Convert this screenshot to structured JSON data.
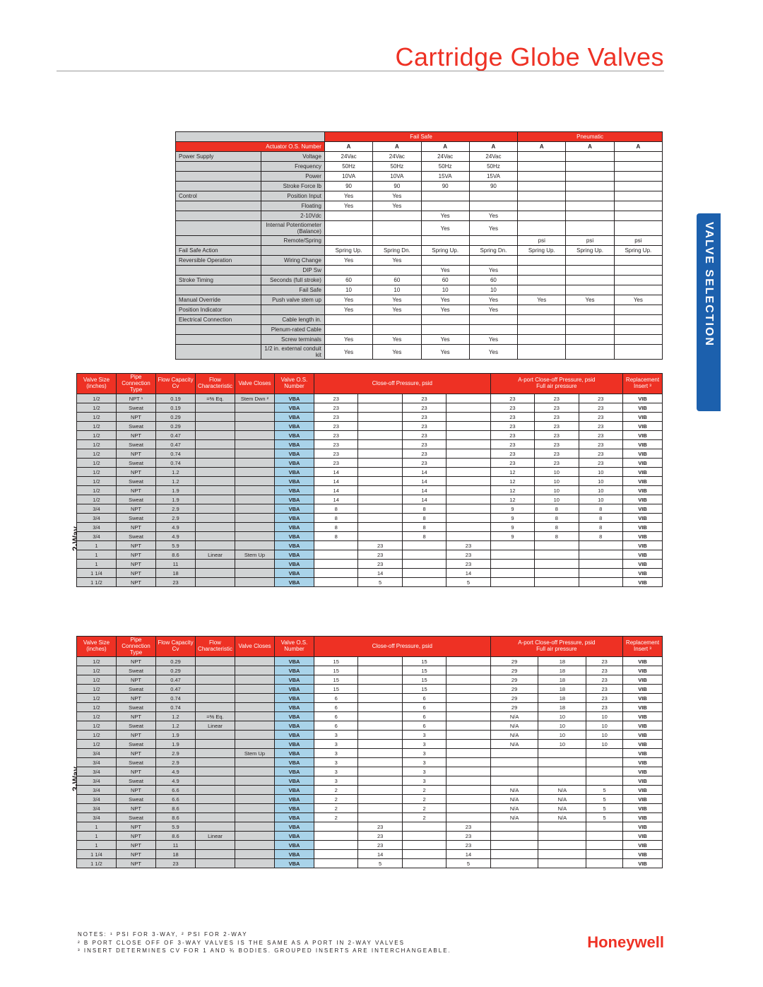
{
  "title": "Cartridge Globe Valves",
  "side_tab": "VALVE SELECTION",
  "logo": "Honeywell",
  "labels": {
    "two_way": "2-Way",
    "three_way": "3-Way"
  },
  "top": {
    "group_hdr": {
      "failsafe": "Fail Safe",
      "pneumatic": "Pneumatic"
    },
    "actuator_hdr": "Actuator O.S. Number",
    "cols": [
      "A",
      "A",
      "A",
      "A",
      "A",
      "A",
      "A"
    ],
    "rows": [
      {
        "l1": "Power Supply",
        "l2": "Voltage",
        "v": [
          "24Vac",
          "24Vac",
          "24Vac",
          "24Vac",
          "",
          "",
          ""
        ]
      },
      {
        "l1": "",
        "l2": "Frequency",
        "v": [
          "50Hz",
          "50Hz",
          "50Hz",
          "50Hz",
          "",
          "",
          ""
        ]
      },
      {
        "l1": "",
        "l2": "Power",
        "v": [
          "10VA",
          "10VA",
          "15VA",
          "15VA",
          "",
          "",
          ""
        ]
      },
      {
        "l1": "",
        "l2": "Stroke Force lb",
        "v": [
          "90",
          "90",
          "90",
          "90",
          "",
          "",
          ""
        ]
      },
      {
        "l1": "Control",
        "l2": "Position Input",
        "v": [
          "Yes",
          "Yes",
          "",
          "",
          "",
          "",
          ""
        ]
      },
      {
        "l1": "",
        "l2": "Floating",
        "v": [
          "Yes",
          "Yes",
          "",
          "",
          "",
          "",
          ""
        ]
      },
      {
        "l1": "",
        "l2": "2-10Vdc",
        "v": [
          "",
          "",
          "Yes",
          "Yes",
          "",
          "",
          ""
        ]
      },
      {
        "l1": "",
        "l2": "Internal Potentiometer (Balance)",
        "v": [
          "",
          "",
          "Yes",
          "Yes",
          "",
          "",
          ""
        ]
      },
      {
        "l1": "",
        "l2": "Remote/Spring",
        "v": [
          "",
          "",
          "",
          "",
          "psi",
          "psi",
          "psi"
        ]
      },
      {
        "l1": "Fail Safe Action",
        "l2": "",
        "v": [
          "Spring Up.",
          "Spring Dn.",
          "Spring Up.",
          "Spring Dn.",
          "Spring Up.",
          "Spring Up.",
          "Spring Up."
        ]
      },
      {
        "l1": "Reversible Operation",
        "l2": "Wiring Change",
        "v": [
          "Yes",
          "Yes",
          "",
          "",
          "",
          "",
          ""
        ]
      },
      {
        "l1": "",
        "l2": "DIP Sw",
        "v": [
          "",
          "",
          "Yes",
          "Yes",
          "",
          "",
          ""
        ]
      },
      {
        "l1": "Stroke Timing",
        "l2": "Seconds (full stroke)",
        "v": [
          "60",
          "60",
          "60",
          "60",
          "",
          "",
          ""
        ]
      },
      {
        "l1": "",
        "l2": "Fail Safe",
        "v": [
          "10",
          "10",
          "10",
          "10",
          "",
          "",
          ""
        ]
      },
      {
        "l1": "Manual Override",
        "l2": "Push valve stem up",
        "v": [
          "Yes",
          "Yes",
          "Yes",
          "Yes",
          "Yes",
          "Yes",
          "Yes"
        ]
      },
      {
        "l1": "Position Indicator",
        "l2": "",
        "v": [
          "Yes",
          "Yes",
          "Yes",
          "Yes",
          "",
          "",
          ""
        ]
      },
      {
        "l1": "Electrical Connection",
        "l2": "Cable length in.",
        "v": [
          "",
          "",
          "",
          "",
          "",
          "",
          ""
        ]
      },
      {
        "l1": "",
        "l2": "Plenum-rated Cable",
        "v": [
          "",
          "",
          "",
          "",
          "",
          "",
          ""
        ]
      },
      {
        "l1": "",
        "l2": "Screw terminals",
        "v": [
          "Yes",
          "Yes",
          "Yes",
          "Yes",
          "",
          "",
          ""
        ]
      },
      {
        "l1": "",
        "l2": "1/2 in. external conduit kit",
        "v": [
          "Yes",
          "Yes",
          "Yes",
          "Yes",
          "",
          "",
          ""
        ]
      }
    ]
  },
  "valve_hdr": {
    "c0": "Valve Size (inches)",
    "c1": "Pipe Connection Type",
    "c2": "Flow Capacity Cv",
    "c3": "Flow Characteristic",
    "c4": "Valve Closes",
    "c5": "Valve O.S. Number",
    "close": "Close-off Pressure, psid",
    "aport": "A-port Close-off Pressure, psid\nFull air pressure",
    "rep": "Replacement Insert ³"
  },
  "two_way": [
    {
      "sz": "1/2",
      "pc": "NPT ¹",
      "cv": "0.19",
      "fc": "=% Eq.",
      "vc": "Stem Dwn ²",
      "os": "VBA",
      "p": [
        "23",
        "",
        "23",
        "",
        "23",
        "23",
        "23"
      ],
      "rp": "VIB"
    },
    {
      "sz": "1/2",
      "pc": "Sweat",
      "cv": "0.19",
      "fc": "",
      "vc": "",
      "os": "VBA",
      "p": [
        "23",
        "",
        "23",
        "",
        "23",
        "23",
        "23"
      ],
      "rp": "VIB"
    },
    {
      "sz": "1/2",
      "pc": "NPT",
      "cv": "0.29",
      "fc": "",
      "vc": "",
      "os": "VBA",
      "p": [
        "23",
        "",
        "23",
        "",
        "23",
        "23",
        "23"
      ],
      "rp": "VIB"
    },
    {
      "sz": "1/2",
      "pc": "Sweat",
      "cv": "0.29",
      "fc": "",
      "vc": "",
      "os": "VBA",
      "p": [
        "23",
        "",
        "23",
        "",
        "23",
        "23",
        "23"
      ],
      "rp": "VIB"
    },
    {
      "sz": "1/2",
      "pc": "NPT",
      "cv": "0.47",
      "fc": "",
      "vc": "",
      "os": "VBA",
      "p": [
        "23",
        "",
        "23",
        "",
        "23",
        "23",
        "23"
      ],
      "rp": "VIB"
    },
    {
      "sz": "1/2",
      "pc": "Sweat",
      "cv": "0.47",
      "fc": "",
      "vc": "",
      "os": "VBA",
      "p": [
        "23",
        "",
        "23",
        "",
        "23",
        "23",
        "23"
      ],
      "rp": "VIB"
    },
    {
      "sz": "1/2",
      "pc": "NPT",
      "cv": "0.74",
      "fc": "",
      "vc": "",
      "os": "VBA",
      "p": [
        "23",
        "",
        "23",
        "",
        "23",
        "23",
        "23"
      ],
      "rp": "VIB"
    },
    {
      "sz": "1/2",
      "pc": "Sweat",
      "cv": "0.74",
      "fc": "",
      "vc": "",
      "os": "VBA",
      "p": [
        "23",
        "",
        "23",
        "",
        "23",
        "23",
        "23"
      ],
      "rp": "VIB"
    },
    {
      "sz": "1/2",
      "pc": "NPT",
      "cv": "1.2",
      "fc": "",
      "vc": "",
      "os": "VBA",
      "p": [
        "14",
        "",
        "14",
        "",
        "12",
        "10",
        "10"
      ],
      "rp": "VIB"
    },
    {
      "sz": "1/2",
      "pc": "Sweat",
      "cv": "1.2",
      "fc": "",
      "vc": "",
      "os": "VBA",
      "p": [
        "14",
        "",
        "14",
        "",
        "12",
        "10",
        "10"
      ],
      "rp": "VIB"
    },
    {
      "sz": "1/2",
      "pc": "NPT",
      "cv": "1.9",
      "fc": "",
      "vc": "",
      "os": "VBA",
      "p": [
        "14",
        "",
        "14",
        "",
        "12",
        "10",
        "10"
      ],
      "rp": "VIB"
    },
    {
      "sz": "1/2",
      "pc": "Sweat",
      "cv": "1.9",
      "fc": "",
      "vc": "",
      "os": "VBA",
      "p": [
        "14",
        "",
        "14",
        "",
        "12",
        "10",
        "10"
      ],
      "rp": "VIB"
    },
    {
      "sz": "3/4",
      "pc": "NPT",
      "cv": "2.9",
      "fc": "",
      "vc": "",
      "os": "VBA",
      "p": [
        "8",
        "",
        "8",
        "",
        "9",
        "8",
        "8"
      ],
      "rp": "VIB"
    },
    {
      "sz": "3/4",
      "pc": "Sweat",
      "cv": "2.9",
      "fc": "",
      "vc": "",
      "os": "VBA",
      "p": [
        "8",
        "",
        "8",
        "",
        "9",
        "8",
        "8"
      ],
      "rp": "VIB"
    },
    {
      "sz": "3/4",
      "pc": "NPT",
      "cv": "4.9",
      "fc": "",
      "vc": "",
      "os": "VBA",
      "p": [
        "8",
        "",
        "8",
        "",
        "9",
        "8",
        "8"
      ],
      "rp": "VIB"
    },
    {
      "sz": "3/4",
      "pc": "Sweat",
      "cv": "4.9",
      "fc": "",
      "vc": "",
      "os": "VBA",
      "p": [
        "8",
        "",
        "8",
        "",
        "9",
        "8",
        "8"
      ],
      "rp": "VIB"
    },
    {
      "sz": "1",
      "pc": "NPT",
      "cv": "5.9",
      "fc": "",
      "vc": "",
      "os": "VBA",
      "p": [
        "",
        "23",
        "",
        "23",
        "",
        "",
        ""
      ],
      "rp": "VIB"
    },
    {
      "sz": "1",
      "pc": "NPT",
      "cv": "8.6",
      "fc": "Linear",
      "vc": "Stem Up",
      "os": "VBA",
      "p": [
        "",
        "23",
        "",
        "23",
        "",
        "",
        ""
      ],
      "rp": "VIB"
    },
    {
      "sz": "1",
      "pc": "NPT",
      "cv": "11",
      "fc": "",
      "vc": "",
      "os": "VBA",
      "p": [
        "",
        "23",
        "",
        "23",
        "",
        "",
        ""
      ],
      "rp": "VIB"
    },
    {
      "sz": "1 1/4",
      "pc": "NPT",
      "cv": "18",
      "fc": "",
      "vc": "",
      "os": "VBA",
      "p": [
        "",
        "14",
        "",
        "14",
        "",
        "",
        ""
      ],
      "rp": "VIB"
    },
    {
      "sz": "1 1/2",
      "pc": "NPT",
      "cv": "23",
      "fc": "",
      "vc": "",
      "os": "VBA",
      "p": [
        "",
        "5",
        "",
        "5",
        "",
        "",
        ""
      ],
      "rp": "VIB"
    }
  ],
  "three_way": [
    {
      "sz": "1/2",
      "pc": "NPT",
      "cv": "0.29",
      "fc": "",
      "vc": "",
      "os": "VBA",
      "p": [
        "15",
        "",
        "15",
        "",
        "29",
        "18",
        "23"
      ],
      "rp": "VIB"
    },
    {
      "sz": "1/2",
      "pc": "Sweat",
      "cv": "0.29",
      "fc": "",
      "vc": "",
      "os": "VBA",
      "p": [
        "15",
        "",
        "15",
        "",
        "29",
        "18",
        "23"
      ],
      "rp": "VIB"
    },
    {
      "sz": "1/2",
      "pc": "NPT",
      "cv": "0.47",
      "fc": "",
      "vc": "",
      "os": "VBA",
      "p": [
        "15",
        "",
        "15",
        "",
        "29",
        "18",
        "23"
      ],
      "rp": "VIB"
    },
    {
      "sz": "1/2",
      "pc": "Sweat",
      "cv": "0.47",
      "fc": "",
      "vc": "",
      "os": "VBA",
      "p": [
        "15",
        "",
        "15",
        "",
        "29",
        "18",
        "23"
      ],
      "rp": "VIB"
    },
    {
      "sz": "1/2",
      "pc": "NPT",
      "cv": "0.74",
      "fc": "",
      "vc": "",
      "os": "VBA",
      "p": [
        "6",
        "",
        "6",
        "",
        "29",
        "18",
        "23"
      ],
      "rp": "VIB"
    },
    {
      "sz": "1/2",
      "pc": "Sweat",
      "cv": "0.74",
      "fc": "",
      "vc": "",
      "os": "VBA",
      "p": [
        "6",
        "",
        "6",
        "",
        "29",
        "18",
        "23"
      ],
      "rp": "VIB"
    },
    {
      "sz": "1/2",
      "pc": "NPT",
      "cv": "1.2",
      "fc": "=% Eq.",
      "vc": "",
      "os": "VBA",
      "p": [
        "6",
        "",
        "6",
        "",
        "N/A",
        "10",
        "10"
      ],
      "rp": "VIB"
    },
    {
      "sz": "1/2",
      "pc": "Sweat",
      "cv": "1.2",
      "fc": "Linear",
      "vc": "",
      "os": "VBA",
      "p": [
        "6",
        "",
        "6",
        "",
        "N/A",
        "10",
        "10"
      ],
      "rp": "VIB"
    },
    {
      "sz": "1/2",
      "pc": "NPT",
      "cv": "1.9",
      "fc": "",
      "vc": "",
      "os": "VBA",
      "p": [
        "3",
        "",
        "3",
        "",
        "N/A",
        "10",
        "10"
      ],
      "rp": "VIB"
    },
    {
      "sz": "1/2",
      "pc": "Sweat",
      "cv": "1.9",
      "fc": "",
      "vc": "",
      "os": "VBA",
      "p": [
        "3",
        "",
        "3",
        "",
        "N/A",
        "10",
        "10"
      ],
      "rp": "VIB"
    },
    {
      "sz": "3/4",
      "pc": "NPT",
      "cv": "2.9",
      "fc": "",
      "vc": "Stem Up",
      "os": "VBA",
      "p": [
        "3",
        "",
        "3",
        "",
        "",
        "",
        ""
      ],
      "rp": "VIB"
    },
    {
      "sz": "3/4",
      "pc": "Sweat",
      "cv": "2.9",
      "fc": "",
      "vc": "",
      "os": "VBA",
      "p": [
        "3",
        "",
        "3",
        "",
        "",
        "",
        ""
      ],
      "rp": "VIB"
    },
    {
      "sz": "3/4",
      "pc": "NPT",
      "cv": "4.9",
      "fc": "",
      "vc": "",
      "os": "VBA",
      "p": [
        "3",
        "",
        "3",
        "",
        "",
        "",
        ""
      ],
      "rp": "VIB"
    },
    {
      "sz": "3/4",
      "pc": "Sweat",
      "cv": "4.9",
      "fc": "",
      "vc": "",
      "os": "VBA",
      "p": [
        "3",
        "",
        "3",
        "",
        "",
        "",
        ""
      ],
      "rp": "VIB"
    },
    {
      "sz": "3/4",
      "pc": "NPT",
      "cv": "6.6",
      "fc": "",
      "vc": "",
      "os": "VBA",
      "p": [
        "2",
        "",
        "2",
        "",
        "N/A",
        "N/A",
        "5"
      ],
      "rp": "VIB"
    },
    {
      "sz": "3/4",
      "pc": "Sweat",
      "cv": "6.6",
      "fc": "",
      "vc": "",
      "os": "VBA",
      "p": [
        "2",
        "",
        "2",
        "",
        "N/A",
        "N/A",
        "5"
      ],
      "rp": "VIB"
    },
    {
      "sz": "3/4",
      "pc": "NPT",
      "cv": "8.6",
      "fc": "",
      "vc": "",
      "os": "VBA",
      "p": [
        "2",
        "",
        "2",
        "",
        "N/A",
        "N/A",
        "5"
      ],
      "rp": "VIB"
    },
    {
      "sz": "3/4",
      "pc": "Sweat",
      "cv": "8.6",
      "fc": "",
      "vc": "",
      "os": "VBA",
      "p": [
        "2",
        "",
        "2",
        "",
        "N/A",
        "N/A",
        "5"
      ],
      "rp": "VIB"
    },
    {
      "sz": "1",
      "pc": "NPT",
      "cv": "5.9",
      "fc": "",
      "vc": "",
      "os": "VBA",
      "p": [
        "",
        "23",
        "",
        "23",
        "",
        "",
        ""
      ],
      "rp": "VIB"
    },
    {
      "sz": "1",
      "pc": "NPT",
      "cv": "8.6",
      "fc": "Linear",
      "vc": "",
      "os": "VBA",
      "p": [
        "",
        "23",
        "",
        "23",
        "",
        "",
        ""
      ],
      "rp": "VIB"
    },
    {
      "sz": "1",
      "pc": "NPT",
      "cv": "11",
      "fc": "",
      "vc": "",
      "os": "VBA",
      "p": [
        "",
        "23",
        "",
        "23",
        "",
        "",
        ""
      ],
      "rp": "VIB"
    },
    {
      "sz": "1 1/4",
      "pc": "NPT",
      "cv": "18",
      "fc": "",
      "vc": "",
      "os": "VBA",
      "p": [
        "",
        "14",
        "",
        "14",
        "",
        "",
        ""
      ],
      "rp": "VIB"
    },
    {
      "sz": "1 1/2",
      "pc": "NPT",
      "cv": "23",
      "fc": "",
      "vc": "",
      "os": "VBA",
      "p": [
        "",
        "5",
        "",
        "5",
        "",
        "",
        ""
      ],
      "rp": "VIB"
    }
  ],
  "notes": [
    "NOTES: ¹ PSI FOR 3-WAY, ² PSI FOR 2-WAY",
    "² B PORT CLOSE OFF OF 3-WAY VALVES IS THE SAME AS A PORT IN 2-WAY VALVES",
    "³ INSERT DETERMINES CV FOR 1 AND ¾ BODIES. GROUPED INSERTS ARE INTERCHANGEABLE."
  ]
}
